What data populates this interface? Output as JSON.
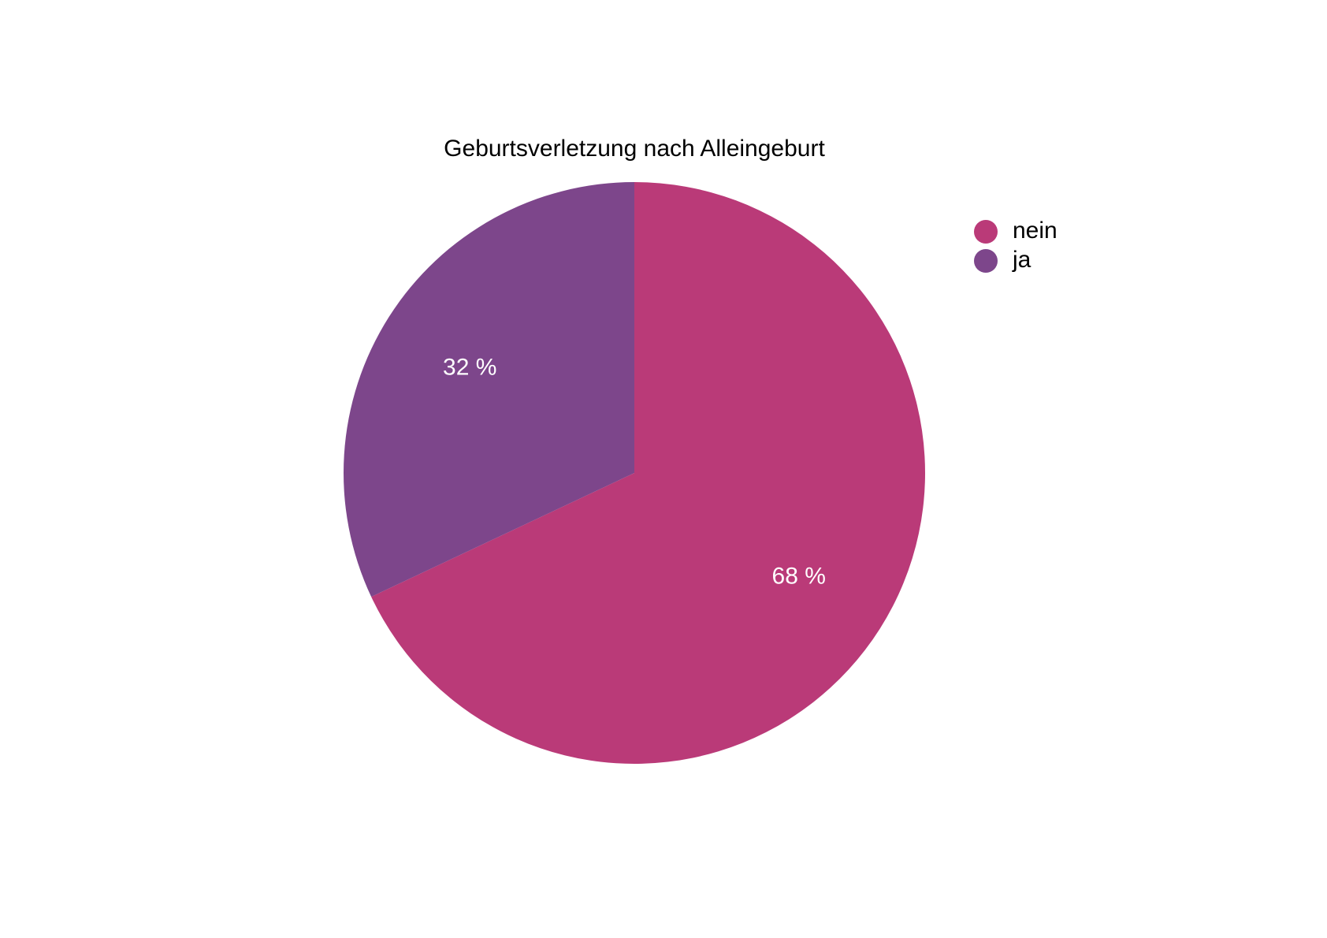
{
  "chart_data": {
    "type": "pie",
    "title": "Geburtsverletzung nach Alleingeburt",
    "categories": [
      "nein",
      "ja"
    ],
    "values": [
      68,
      32
    ],
    "value_labels": [
      "68 %",
      "32 %"
    ],
    "colors": [
      "#ba3a78",
      "#7d468b"
    ],
    "legend_position": "top-right",
    "label_color": "#ffffff",
    "start": "12 o'clock",
    "direction": "clockwise"
  }
}
